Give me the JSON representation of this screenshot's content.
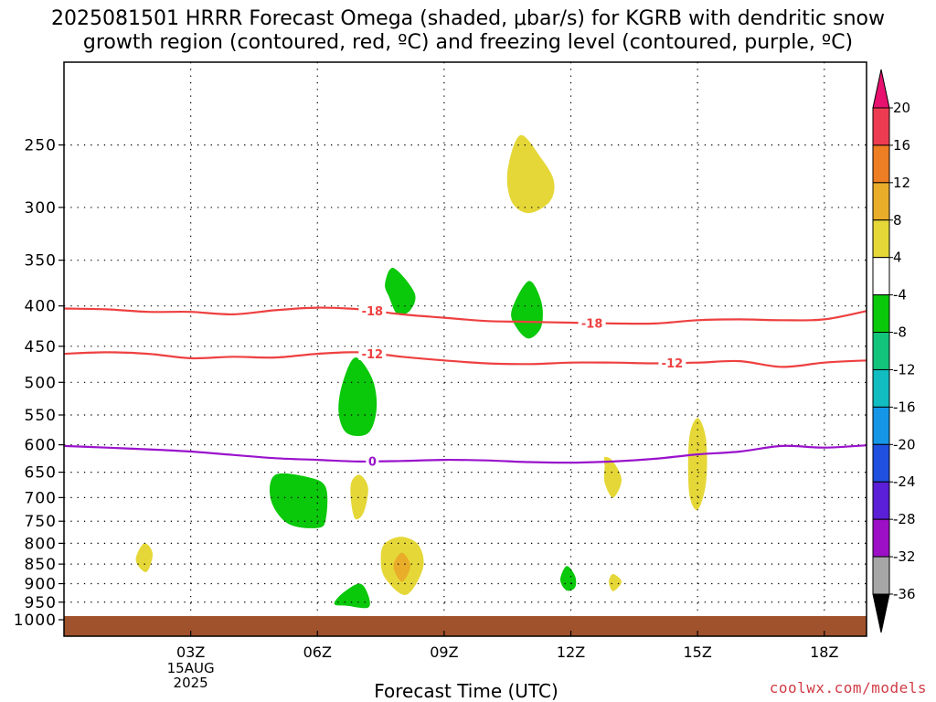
{
  "header": {
    "title_line1": "2025081501 HRRR Forecast Omega (shaded, μbar/s) for KGRB with dendritic snow",
    "title_line2": "growth region (contoured, red, ºC) and freezing level (contoured, purple, ºC)"
  },
  "footer": {
    "credit": "coolwx.com/models"
  },
  "chart_data": {
    "type": "heatmap",
    "xlabel": "Forecast Time (UTC)",
    "ylabel": "",
    "x_ticks": [
      "03Z",
      "06Z",
      "09Z",
      "12Z",
      "15Z",
      "18Z"
    ],
    "x_tick_hours": [
      3,
      6,
      9,
      12,
      15,
      18
    ],
    "x_date_label": [
      "15AUG",
      "2025"
    ],
    "xlim": [
      0,
      19
    ],
    "y_ticks": [
      250,
      300,
      350,
      400,
      450,
      500,
      550,
      600,
      650,
      700,
      750,
      800,
      850,
      900,
      950,
      1000
    ],
    "ylim": [
      200,
      1000
    ],
    "y_scale": "log",
    "grid": true,
    "colorbar": {
      "labels": [
        "20",
        "16",
        "12",
        "8",
        "4",
        "-4",
        "-8",
        "-12",
        "-16",
        "-20",
        "-24",
        "-28",
        "-32",
        "-36"
      ],
      "colors": [
        "#ed3b52",
        "#ee7e23",
        "#e9ad29",
        "#e5d737",
        "#ffffff",
        "#0ac80a",
        "#12c47b",
        "#11bdc0",
        "#1596e7",
        "#1f50e0",
        "#5a1fd6",
        "#9c0fc6",
        "#a6a6a6"
      ],
      "top_arrow_color": "#e8116f",
      "bottom_arrow_color": "#000000"
    },
    "contours": [
      {
        "label": "-18",
        "color": "#ee4040",
        "x": [
          0,
          1,
          2,
          3,
          4,
          5,
          6,
          7,
          8,
          9,
          10,
          11,
          12,
          13,
          14,
          15,
          16,
          17,
          18,
          19
        ],
        "y": [
          403,
          404,
          407,
          407,
          410,
          405,
          402,
          404,
          410,
          414,
          418,
          419,
          420,
          421,
          421,
          417,
          416,
          417,
          416,
          406
        ]
      },
      {
        "label": "-12",
        "color": "#ee4040",
        "x": [
          0,
          1,
          2,
          3,
          4,
          5,
          6,
          7,
          8,
          9,
          10,
          11,
          12,
          13,
          14,
          15,
          16,
          17,
          18,
          19
        ],
        "y": [
          460,
          458,
          460,
          466,
          464,
          465,
          460,
          458,
          464,
          469,
          473,
          474,
          472,
          472,
          473,
          472,
          470,
          478,
          472,
          469
        ]
      },
      {
        "label": "0",
        "color": "#9a12cc",
        "x": [
          0,
          1,
          2,
          3,
          4,
          5,
          6,
          7,
          8,
          9,
          10,
          11,
          12,
          13,
          14,
          15,
          16,
          17,
          18,
          19
        ],
        "y": [
          602,
          605,
          608,
          612,
          618,
          624,
          627,
          630,
          629,
          627,
          628,
          631,
          632,
          630,
          625,
          617,
          612,
          602,
          605,
          601
        ]
      }
    ],
    "omega_areas": [
      {
        "color": "#e5d737",
        "points": [
          [
            10.8,
            243
          ],
          [
            11.3,
            260
          ],
          [
            11.6,
            278
          ],
          [
            11.5,
            295
          ],
          [
            11.0,
            305
          ],
          [
            10.6,
            295
          ],
          [
            10.5,
            270
          ]
        ]
      },
      {
        "color": "#0ac80a",
        "points": [
          [
            7.8,
            358
          ],
          [
            8.3,
            385
          ],
          [
            8.2,
            405
          ],
          [
            7.9,
            410
          ],
          [
            7.7,
            390
          ],
          [
            7.6,
            375
          ]
        ]
      },
      {
        "color": "#0ac80a",
        "points": [
          [
            11.0,
            372
          ],
          [
            11.3,
            395
          ],
          [
            11.3,
            425
          ],
          [
            11.0,
            440
          ],
          [
            10.7,
            425
          ],
          [
            10.6,
            405
          ]
        ]
      },
      {
        "color": "#0ac80a",
        "points": [
          [
            6.9,
            465
          ],
          [
            7.3,
            495
          ],
          [
            7.4,
            540
          ],
          [
            7.2,
            580
          ],
          [
            6.7,
            580
          ],
          [
            6.5,
            545
          ],
          [
            6.6,
            500
          ]
        ]
      },
      {
        "color": "#e5d737",
        "points": [
          [
            15.0,
            555
          ],
          [
            15.2,
            590
          ],
          [
            15.2,
            670
          ],
          [
            15.0,
            725
          ],
          [
            14.8,
            690
          ],
          [
            14.8,
            590
          ]
        ]
      },
      {
        "color": "#e5d737",
        "points": [
          [
            12.8,
            622
          ],
          [
            13.0,
            630
          ],
          [
            13.2,
            665
          ],
          [
            13.0,
            700
          ],
          [
            12.8,
            670
          ],
          [
            12.8,
            640
          ]
        ]
      },
      {
        "color": "#0ac80a",
        "points": [
          [
            5.0,
            655
          ],
          [
            5.8,
            660
          ],
          [
            6.2,
            680
          ],
          [
            6.2,
            745
          ],
          [
            6.0,
            765
          ],
          [
            5.3,
            755
          ],
          [
            4.9,
            705
          ]
        ]
      },
      {
        "color": "#e5d737",
        "points": [
          [
            7.0,
            655
          ],
          [
            7.2,
            680
          ],
          [
            7.1,
            730
          ],
          [
            6.9,
            745
          ],
          [
            6.8,
            710
          ],
          [
            6.8,
            670
          ]
        ]
      },
      {
        "color": "#e5d737",
        "points": [
          [
            1.9,
            800
          ],
          [
            2.1,
            825
          ],
          [
            1.95,
            870
          ],
          [
            1.7,
            840
          ]
        ]
      },
      {
        "color": "#e5d737",
        "points": [
          [
            8.0,
            785
          ],
          [
            8.4,
            805
          ],
          [
            8.5,
            860
          ],
          [
            8.1,
            930
          ],
          [
            7.6,
            885
          ],
          [
            7.5,
            835
          ],
          [
            7.6,
            800
          ]
        ]
      },
      {
        "color": "#e9ad29",
        "points": [
          [
            8.0,
            822
          ],
          [
            8.2,
            855
          ],
          [
            8.0,
            895
          ],
          [
            7.8,
            855
          ]
        ]
      },
      {
        "color": "#0ac80a",
        "points": [
          [
            11.9,
            855
          ],
          [
            12.1,
            880
          ],
          [
            12.1,
            910
          ],
          [
            11.9,
            918
          ],
          [
            11.75,
            890
          ]
        ]
      },
      {
        "color": "#e5d737",
        "points": [
          [
            13.0,
            875
          ],
          [
            13.2,
            895
          ],
          [
            13.0,
            920
          ],
          [
            12.9,
            895
          ]
        ]
      },
      {
        "color": "#0ac80a",
        "points": [
          [
            7.0,
            900
          ],
          [
            7.2,
            930
          ],
          [
            7.2,
            965
          ],
          [
            6.7,
            960
          ],
          [
            6.4,
            955
          ],
          [
            6.6,
            925
          ]
        ]
      }
    ]
  }
}
